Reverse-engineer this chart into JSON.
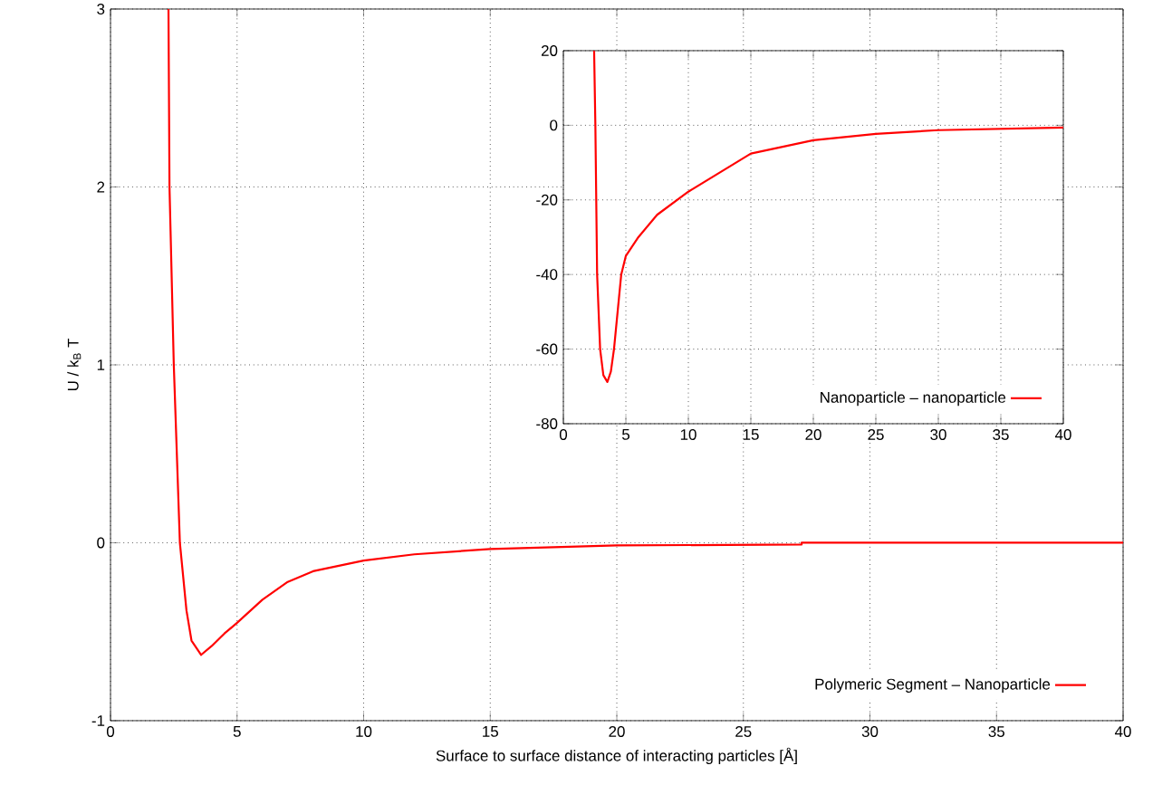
{
  "chart_data": [
    {
      "type": "line",
      "xlabel": "Surface to surface distance of interacting particles [Å]",
      "ylabel": "U / k$_{B}$ T",
      "xlim": [
        0,
        40
      ],
      "ylim": [
        -1,
        3
      ],
      "xticks": [
        0,
        5,
        10,
        15,
        20,
        25,
        30,
        35,
        40
      ],
      "yticks": [
        -1,
        0,
        1,
        2,
        3
      ],
      "grid": true,
      "legend": "bottom right",
      "series": [
        {
          "name": "Polymeric Segment – Nanoparticle",
          "color": "#ff0000",
          "x": [
            2.29,
            2.33,
            2.5,
            2.74,
            3.0,
            3.2,
            3.58,
            4.0,
            4.5,
            5,
            6,
            7,
            8,
            10,
            12,
            15,
            20,
            27.3,
            27.3,
            40
          ],
          "values": [
            3,
            2,
            1,
            0,
            -0.38,
            -0.55,
            -0.63,
            -0.58,
            -0.51,
            -0.45,
            -0.32,
            -0.22,
            -0.16,
            -0.1,
            -0.065,
            -0.035,
            -0.015,
            -0.01,
            0,
            0
          ]
        }
      ]
    },
    {
      "type": "line",
      "xlim": [
        0,
        40
      ],
      "ylim": [
        -80,
        20
      ],
      "xticks": [
        0,
        5,
        10,
        15,
        20,
        25,
        30,
        35,
        40
      ],
      "yticks": [
        -80,
        -60,
        -40,
        -20,
        0,
        20
      ],
      "grid": true,
      "legend": "bottom right",
      "series": [
        {
          "name": "Nanoparticle – nanoparticle",
          "color": "#ff0000",
          "x": [
            2.46,
            2.56,
            2.7,
            2.94,
            3.2,
            3.52,
            3.8,
            4.05,
            4.63,
            5,
            6,
            7.5,
            10,
            15,
            20,
            25,
            30,
            40
          ],
          "values": [
            20,
            0,
            -40,
            -60,
            -67,
            -68.8,
            -66,
            -60,
            -40,
            -35,
            -30,
            -24,
            -17.8,
            -7.6,
            -4,
            -2.3,
            -1.3,
            -0.6
          ]
        }
      ]
    }
  ]
}
